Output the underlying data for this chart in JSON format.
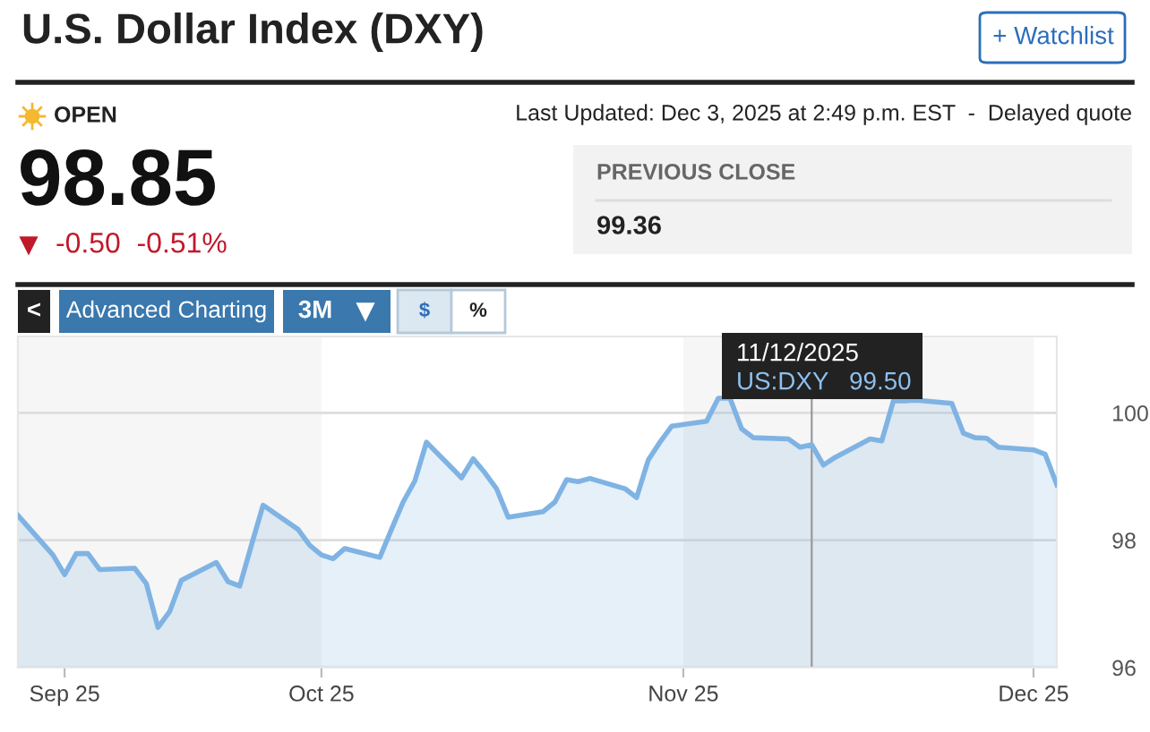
{
  "chart_data": {
    "type": "area",
    "title": "U.S. Dollar Index (DXY)",
    "annotations": [
      "+ Watchlist",
      "OPEN",
      "Last Updated: Dec 3, 2025 at 2:49 p.m. EST  -  Delayed quote",
      "98.85",
      "-0.50  -0.51%",
      "PREVIOUS CLOSE",
      "99.36",
      "<",
      "Advanced Charting",
      "3M",
      "$",
      "%",
      "11/12/2025",
      "US:DXY   99.50"
    ],
    "x": [
      "2025-09-05",
      "2025-09-08",
      "2025-09-09",
      "2025-09-10",
      "2025-09-11",
      "2025-09-12",
      "2025-09-15",
      "2025-09-16",
      "2025-09-17",
      "2025-09-18",
      "2025-09-19",
      "2025-09-22",
      "2025-09-23",
      "2025-09-24",
      "2025-09-25",
      "2025-09-26",
      "2025-09-29",
      "2025-09-30",
      "2025-10-01",
      "2025-10-02",
      "2025-10-03",
      "2025-10-06",
      "2025-10-07",
      "2025-10-08",
      "2025-10-09",
      "2025-10-10",
      "2025-10-13",
      "2025-10-14",
      "2025-10-15",
      "2025-10-16",
      "2025-10-17",
      "2025-10-20",
      "2025-10-21",
      "2025-10-22",
      "2025-10-23",
      "2025-10-24",
      "2025-10-27",
      "2025-10-28",
      "2025-10-29",
      "2025-10-30",
      "2025-10-31",
      "2025-11-03",
      "2025-11-04",
      "2025-11-05",
      "2025-11-06",
      "2025-11-07",
      "2025-11-10",
      "2025-11-11",
      "2025-11-12",
      "2025-11-13",
      "2025-11-14",
      "2025-11-17",
      "2025-11-18",
      "2025-11-19",
      "2025-11-20",
      "2025-11-21",
      "2025-11-24",
      "2025-11-25",
      "2025-11-26",
      "2025-11-27",
      "2025-11-28",
      "2025-12-01",
      "2025-12-02",
      "2025-12-03"
    ],
    "series": [
      {
        "color": "#7fb3e3",
        "values": [
          98.39,
          97.77,
          97.46,
          97.79,
          97.79,
          97.54,
          97.56,
          97.32,
          96.63,
          96.88,
          97.37,
          97.65,
          97.35,
          97.28,
          97.92,
          98.55,
          98.17,
          97.92,
          97.77,
          97.71,
          97.87,
          97.73,
          98.17,
          98.6,
          98.93,
          99.54,
          98.98,
          99.28,
          99.06,
          98.81,
          98.36,
          98.45,
          98.6,
          98.95,
          98.92,
          98.97,
          98.81,
          98.67,
          99.26,
          99.54,
          99.79,
          99.87,
          100.23,
          100.23,
          99.75,
          99.61,
          99.59,
          99.46,
          99.5,
          99.18,
          99.3,
          99.59,
          99.56,
          100.19,
          100.19,
          100.2,
          100.15,
          99.68,
          99.61,
          99.6,
          99.46,
          99.42,
          99.35,
          98.87
        ]
      }
    ],
    "xlim": [
      "2025-09-05",
      "2025-12-03"
    ],
    "xticks": [
      {
        "value": "2025-09-09",
        "label": "Sep 25"
      },
      {
        "value": "2025-10-01",
        "label": "Oct 25"
      },
      {
        "value": "2025-11-01",
        "label": "Nov 25"
      },
      {
        "value": "2025-12-01",
        "label": "Dec 25"
      }
    ],
    "ylim": [
      96,
      101.2
    ],
    "yticks": [
      96,
      98,
      100
    ],
    "grid": "y",
    "bands": [
      {
        "axis": "x",
        "from": "2025-09-05",
        "to": "2025-10-01",
        "color": "#f6f6f6"
      },
      {
        "axis": "x",
        "from": "2025-11-01",
        "to": "2025-12-01",
        "color": "#f6f6f6"
      }
    ],
    "ref_lines": [
      {
        "axis": "x",
        "value": "2025-11-12",
        "color": "#999999"
      }
    ]
  }
}
